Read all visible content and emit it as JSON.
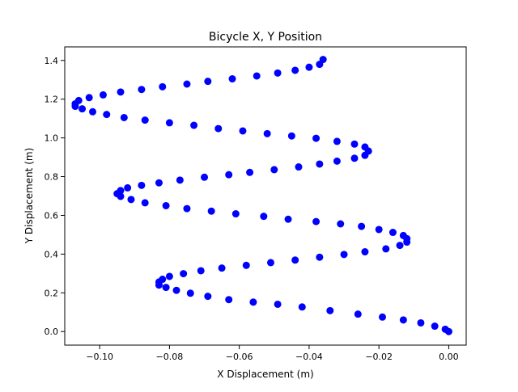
{
  "chart_data": {
    "type": "scatter",
    "title": "Bicycle X, Y Position",
    "xlabel": "X Displacement (m)",
    "ylabel": "Y Displacement (m)",
    "xlim": [
      -0.11,
      0.005
    ],
    "ylim": [
      -0.07,
      1.47
    ],
    "xticks": [
      -0.1,
      -0.08,
      -0.06,
      -0.04,
      -0.02,
      0.0
    ],
    "xtick_labels": [
      "−0.10",
      "−0.08",
      "−0.06",
      "−0.04",
      "−0.02",
      "0.00"
    ],
    "yticks": [
      0.0,
      0.2,
      0.4,
      0.6,
      0.8,
      1.0,
      1.2,
      1.4
    ],
    "ytick_labels": [
      "0.0",
      "0.2",
      "0.4",
      "0.6",
      "0.8",
      "1.0",
      "1.2",
      "1.4"
    ],
    "grid": false,
    "marker_color": "#0000ff",
    "series": [
      {
        "x": [
          0.0,
          -0.001,
          -0.004,
          -0.008,
          -0.013,
          -0.019,
          -0.026,
          -0.034,
          -0.042,
          -0.049,
          -0.056,
          -0.063,
          -0.069,
          -0.074,
          -0.078,
          -0.081,
          -0.083,
          -0.083,
          -0.082,
          -0.08,
          -0.076,
          -0.071,
          -0.065,
          -0.058,
          -0.051,
          -0.044,
          -0.037,
          -0.03,
          -0.024,
          -0.018,
          -0.014,
          -0.012,
          -0.012,
          -0.013,
          -0.016,
          -0.02,
          -0.025,
          -0.031,
          -0.038,
          -0.046,
          -0.053,
          -0.061,
          -0.068,
          -0.075,
          -0.081,
          -0.087,
          -0.091,
          -0.094,
          -0.095,
          -0.094,
          -0.092,
          -0.088,
          -0.083,
          -0.077,
          -0.07,
          -0.063,
          -0.057,
          -0.05,
          -0.043,
          -0.037,
          -0.032,
          -0.027,
          -0.024,
          -0.023,
          -0.024,
          -0.027,
          -0.032,
          -0.038,
          -0.045,
          -0.052,
          -0.059,
          -0.066,
          -0.073,
          -0.08,
          -0.087,
          -0.093,
          -0.098,
          -0.102,
          -0.105,
          -0.107,
          -0.107,
          -0.106,
          -0.103,
          -0.099,
          -0.094,
          -0.088,
          -0.082,
          -0.075,
          -0.069,
          -0.062,
          -0.055,
          -0.049,
          -0.044,
          -0.04,
          -0.037,
          -0.036
        ],
        "y": [
          0.0,
          0.012,
          0.028,
          0.045,
          0.06,
          0.075,
          0.09,
          0.108,
          0.127,
          0.141,
          0.152,
          0.165,
          0.182,
          0.198,
          0.213,
          0.228,
          0.24,
          0.256,
          0.27,
          0.285,
          0.299,
          0.314,
          0.328,
          0.342,
          0.356,
          0.369,
          0.384,
          0.398,
          0.412,
          0.427,
          0.445,
          0.462,
          0.48,
          0.496,
          0.512,
          0.527,
          0.543,
          0.556,
          0.568,
          0.58,
          0.595,
          0.608,
          0.622,
          0.635,
          0.65,
          0.665,
          0.682,
          0.698,
          0.712,
          0.728,
          0.742,
          0.755,
          0.768,
          0.782,
          0.797,
          0.81,
          0.822,
          0.836,
          0.85,
          0.865,
          0.88,
          0.895,
          0.91,
          0.932,
          0.953,
          0.968,
          0.982,
          0.998,
          1.01,
          1.022,
          1.036,
          1.048,
          1.065,
          1.078,
          1.092,
          1.105,
          1.121,
          1.135,
          1.15,
          1.163,
          1.176,
          1.193,
          1.208,
          1.222,
          1.237,
          1.25,
          1.264,
          1.278,
          1.292,
          1.305,
          1.32,
          1.335,
          1.349,
          1.365,
          1.38,
          1.405
        ]
      }
    ]
  }
}
